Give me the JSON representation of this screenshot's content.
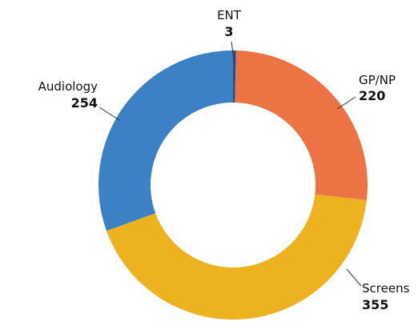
{
  "chart_data": {
    "type": "donut",
    "categories": [
      "ENT",
      "GP/NP",
      "Screens",
      "Audiology"
    ],
    "values": [
      3,
      220,
      355,
      254
    ],
    "colors": [
      "#2b4d86",
      "#ec7344",
      "#edb220",
      "#3d81c5"
    ]
  }
}
